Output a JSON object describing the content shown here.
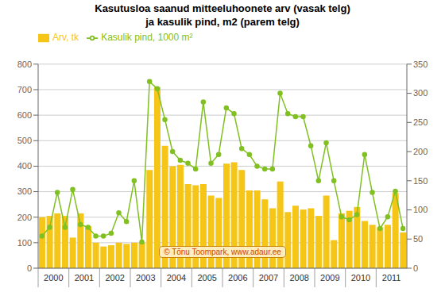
{
  "chart_data": {
    "type": "bar",
    "title": "Kasutusloa saanud mitteeluhoonete arv (vasak telg)\nja kasulik pind, m2 (parem telg)",
    "categories": [
      null,
      "2000",
      null,
      null,
      null,
      "2001",
      null,
      null,
      null,
      "2002",
      null,
      null,
      null,
      "2003",
      null,
      null,
      null,
      "2004",
      null,
      null,
      null,
      "2005",
      null,
      null,
      null,
      "2006",
      null,
      null,
      null,
      "2007",
      null,
      null,
      null,
      "2008",
      null,
      null,
      null,
      "2009",
      null,
      null,
      null,
      "2010",
      null,
      null,
      null,
      "2011",
      null,
      null
    ],
    "series": [
      {
        "name": "Arv, tk",
        "type": "bar",
        "color": "#F5C518",
        "values": [
          200,
          205,
          215,
          205,
          120,
          215,
          165,
          100,
          85,
          90,
          100,
          95,
          100,
          100,
          385,
          710,
          480,
          400,
          405,
          330,
          325,
          330,
          285,
          275,
          410,
          415,
          385,
          305,
          305,
          270,
          235,
          340,
          220,
          245,
          230,
          235,
          205,
          285,
          110,
          215,
          225,
          240,
          185,
          170,
          160,
          170,
          295,
          140
        ]
      },
      {
        "name": "Kasulik pind, 1000 m²",
        "type": "line",
        "color": "#80C020",
        "marker": "circle",
        "axis": "y2",
        "values": [
          55,
          70,
          130,
          70,
          135,
          75,
          70,
          55,
          55,
          60,
          95,
          80,
          150,
          45,
          320,
          308,
          255,
          200,
          185,
          180,
          170,
          285,
          180,
          195,
          275,
          265,
          205,
          195,
          175,
          170,
          170,
          300,
          265,
          260,
          260,
          210,
          150,
          215,
          150,
          88,
          83,
          92,
          195,
          130,
          68,
          88,
          132,
          68
        ]
      }
    ],
    "ylim": [
      0,
      800
    ],
    "yticks": [
      0,
      100,
      200,
      300,
      400,
      500,
      600,
      700,
      800
    ],
    "y2lim": [
      0,
      350
    ],
    "y2ticks": [
      0,
      50,
      100,
      150,
      200,
      250,
      300,
      350
    ],
    "grid": true,
    "legend": "upper left",
    "annotations": [
      "© Tõnu Toompark, www.adaur.ee"
    ]
  }
}
